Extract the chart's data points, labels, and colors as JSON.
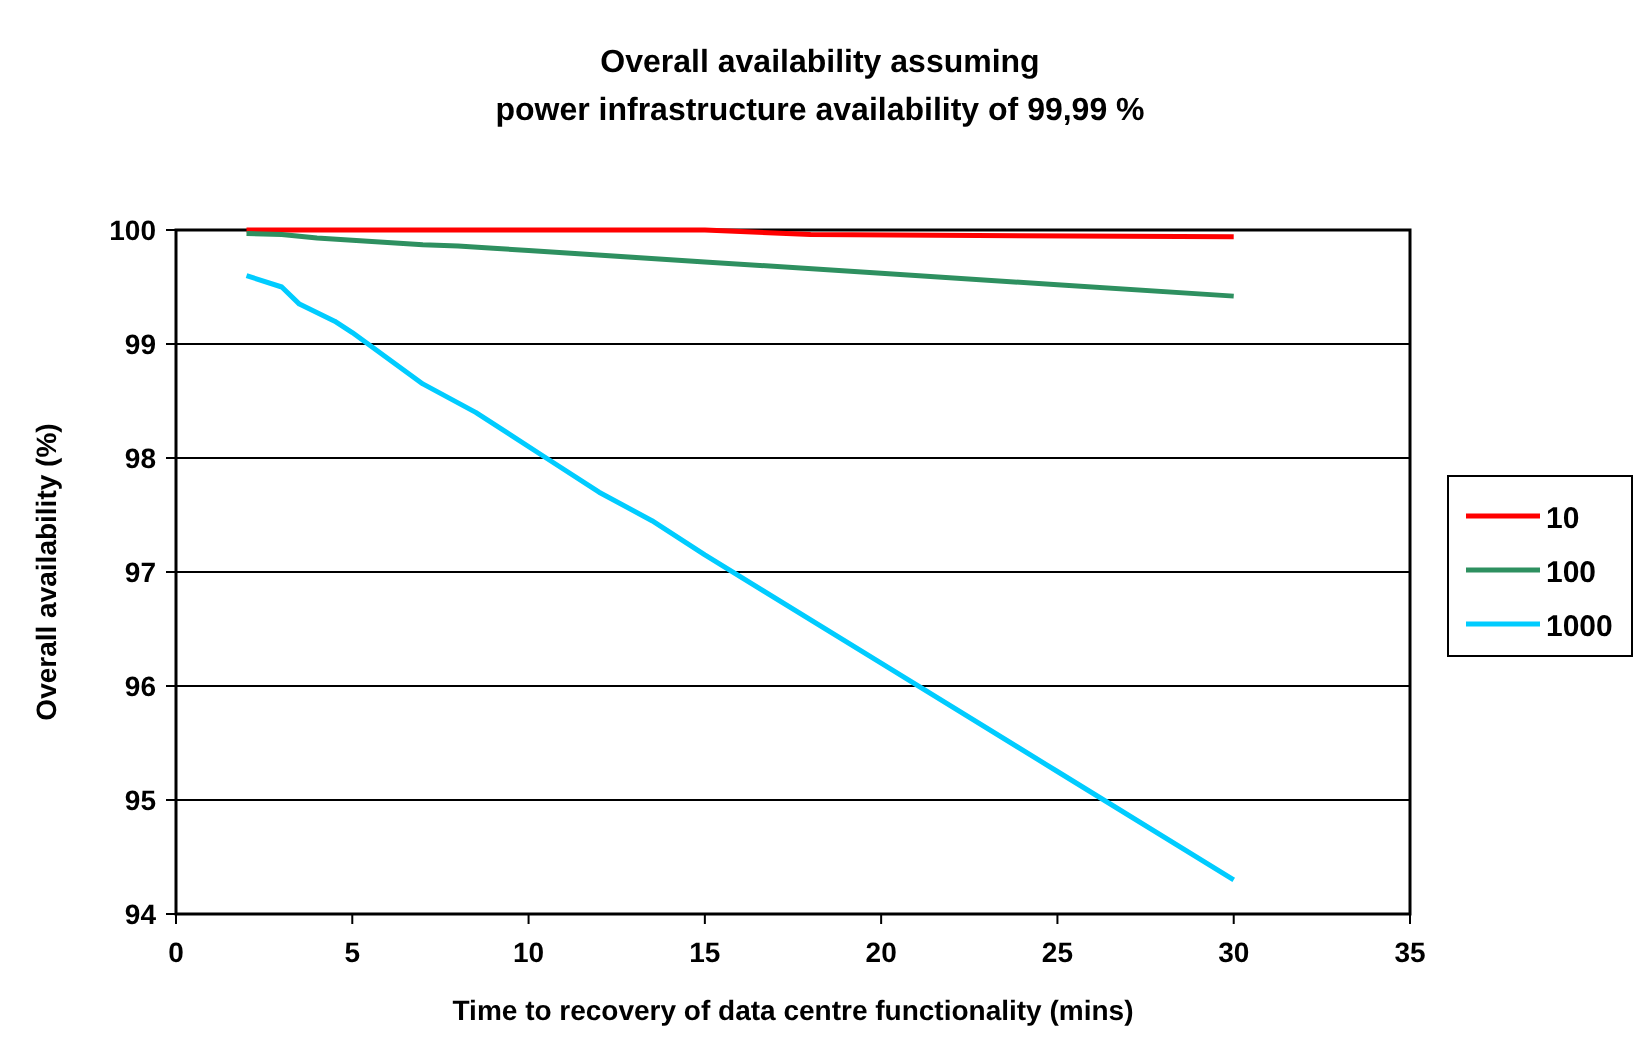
{
  "chart_data": {
    "type": "line",
    "title": "Overall availability assuming\npower infrastructure availability of 99,99 %",
    "xlabel": "Time to recovery of data centre functionality (mins)",
    "ylabel": "Overall availability (%)",
    "xlim": [
      0,
      35
    ],
    "xticks": [
      0,
      5,
      10,
      15,
      20,
      25,
      30,
      35
    ],
    "ylim": [
      94,
      100
    ],
    "yticks": [
      94,
      95,
      96,
      97,
      98,
      99,
      100
    ],
    "grid": "y",
    "legend": "right",
    "marker": "none",
    "line_style": "solid",
    "series": [
      {
        "name": "10",
        "color": "#ff0000",
        "x": [
          2,
          10,
          15,
          18,
          30
        ],
        "values": [
          100,
          100,
          100,
          99.96,
          99.94
        ]
      },
      {
        "name": "100",
        "color": "#2e9060",
        "x": [
          2,
          3,
          4,
          5,
          7,
          8,
          9,
          10,
          15,
          20,
          25,
          30
        ],
        "values": [
          99.97,
          99.96,
          99.93,
          99.91,
          99.87,
          99.86,
          99.84,
          99.82,
          99.72,
          99.62,
          99.52,
          99.42
        ]
      },
      {
        "name": "1000",
        "color": "#00ccff",
        "x": [
          2,
          3,
          3.5,
          4.5,
          5,
          7,
          8.5,
          10.5,
          12,
          13.5,
          15,
          20,
          25,
          30
        ],
        "values": [
          99.6,
          99.5,
          99.35,
          99.2,
          99.1,
          98.65,
          98.4,
          98.0,
          97.7,
          97.45,
          97.15,
          96.2,
          95.25,
          94.3
        ]
      }
    ]
  }
}
